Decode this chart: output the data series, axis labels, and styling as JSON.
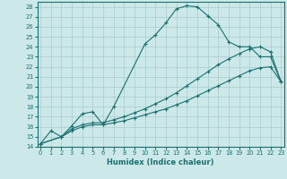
{
  "xlabel": "Humidex (Indice chaleur)",
  "bg_color": "#cce8e8",
  "line_color": "#1a7070",
  "grid_color": "#a8cccc",
  "xticks": [
    0,
    1,
    2,
    3,
    4,
    5,
    6,
    7,
    8,
    9,
    10,
    11,
    12,
    13,
    14,
    15,
    16,
    17,
    18,
    19,
    20,
    21,
    22,
    23
  ],
  "yticks": [
    14,
    15,
    16,
    17,
    18,
    19,
    20,
    21,
    22,
    23,
    24,
    25,
    26,
    27,
    28
  ],
  "xlim": [
    -0.3,
    23.3
  ],
  "ylim": [
    14,
    28.5
  ],
  "line1_x": [
    0,
    1,
    2,
    3,
    4,
    5,
    6,
    7,
    10,
    11,
    12,
    13,
    14,
    15,
    16,
    17,
    18,
    19,
    20,
    21,
    22,
    23
  ],
  "line1_y": [
    14.3,
    15.6,
    15.0,
    16.1,
    17.3,
    17.5,
    16.2,
    18.0,
    24.3,
    25.2,
    26.4,
    27.8,
    28.1,
    28.0,
    27.1,
    26.2,
    24.5,
    24.0,
    24.0,
    23.0,
    23.0,
    20.5
  ],
  "line2_x": [
    0,
    2,
    3,
    4,
    5,
    6,
    7,
    8,
    9,
    10,
    11,
    12,
    13,
    14,
    15,
    16,
    17,
    18,
    19,
    20,
    21,
    22,
    23
  ],
  "line2_y": [
    14.3,
    15.0,
    15.8,
    16.2,
    16.4,
    16.4,
    16.7,
    17.0,
    17.4,
    17.8,
    18.3,
    18.8,
    19.4,
    20.1,
    20.8,
    21.5,
    22.2,
    22.8,
    23.3,
    23.8,
    24.0,
    23.5,
    20.5
  ],
  "line3_x": [
    0,
    2,
    3,
    4,
    5,
    6,
    7,
    8,
    9,
    10,
    11,
    12,
    13,
    14,
    15,
    16,
    17,
    18,
    19,
    20,
    21,
    22,
    23
  ],
  "line3_y": [
    14.3,
    15.0,
    15.6,
    16.0,
    16.2,
    16.2,
    16.4,
    16.6,
    16.9,
    17.2,
    17.5,
    17.8,
    18.2,
    18.6,
    19.1,
    19.6,
    20.1,
    20.6,
    21.1,
    21.6,
    21.9,
    22.0,
    20.5
  ]
}
